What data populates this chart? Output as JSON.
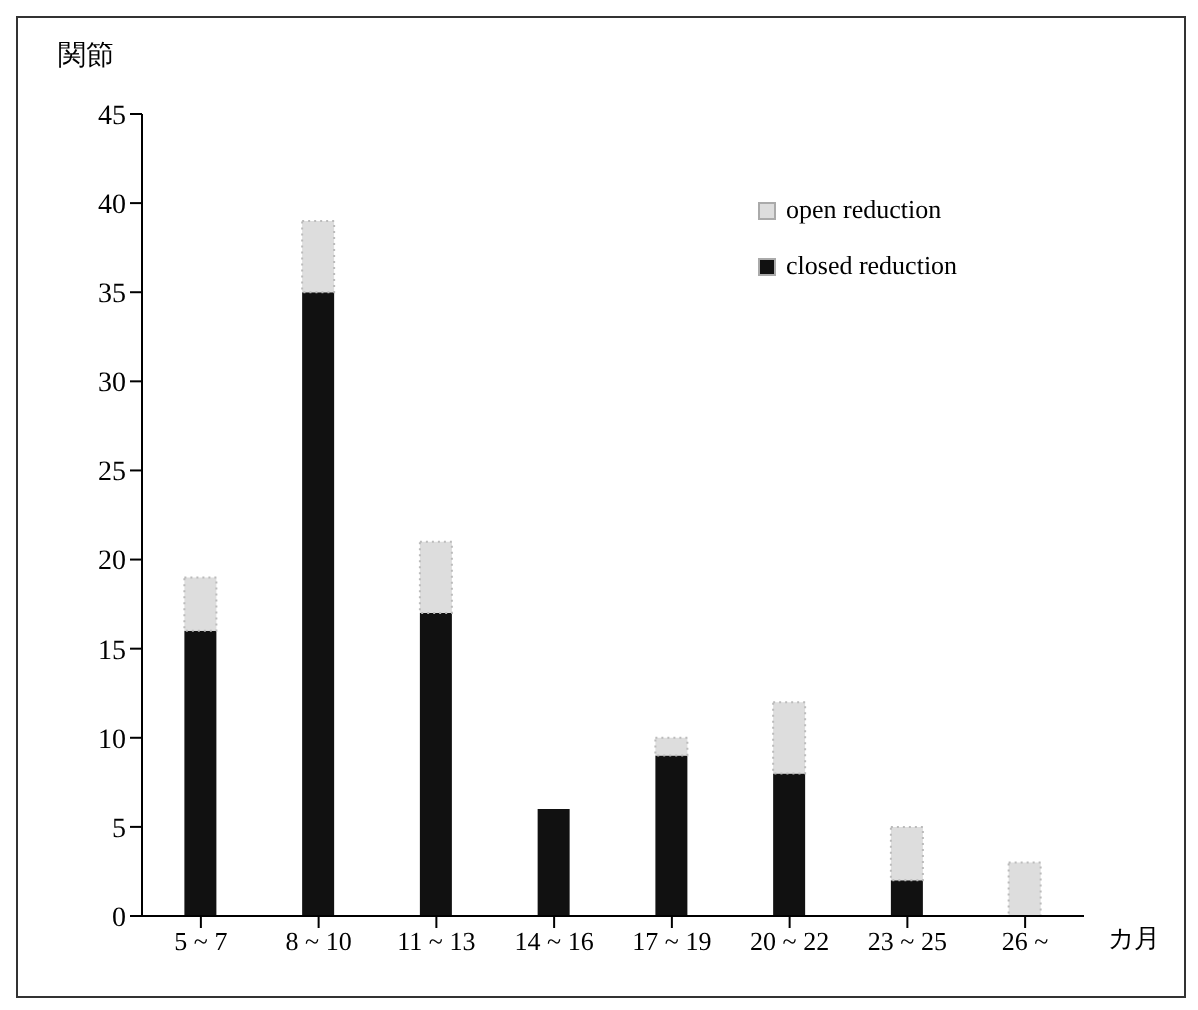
{
  "chart_data": {
    "type": "bar",
    "xlabel": "カ月",
    "ylabel": "関節",
    "categories": [
      "5 ~ 7",
      "8 ~ 10",
      "11 ~ 13",
      "14 ~ 16",
      "17 ~ 19",
      "20 ~ 22",
      "23 ~ 25",
      "26 ~"
    ],
    "stacked": true,
    "series": [
      {
        "name": "closed reduction",
        "color": "#111111",
        "values": [
          16,
          35,
          17,
          6,
          9,
          8,
          2,
          0
        ]
      },
      {
        "name": "open reduction",
        "color": "#dddddd",
        "values": [
          3,
          4,
          4,
          0,
          1,
          4,
          3,
          3
        ]
      }
    ],
    "ylim": [
      0,
      45
    ],
    "yticks": [
      0,
      5,
      10,
      15,
      20,
      25,
      30,
      35,
      40,
      45
    ],
    "grid": false,
    "legend": "top right"
  }
}
